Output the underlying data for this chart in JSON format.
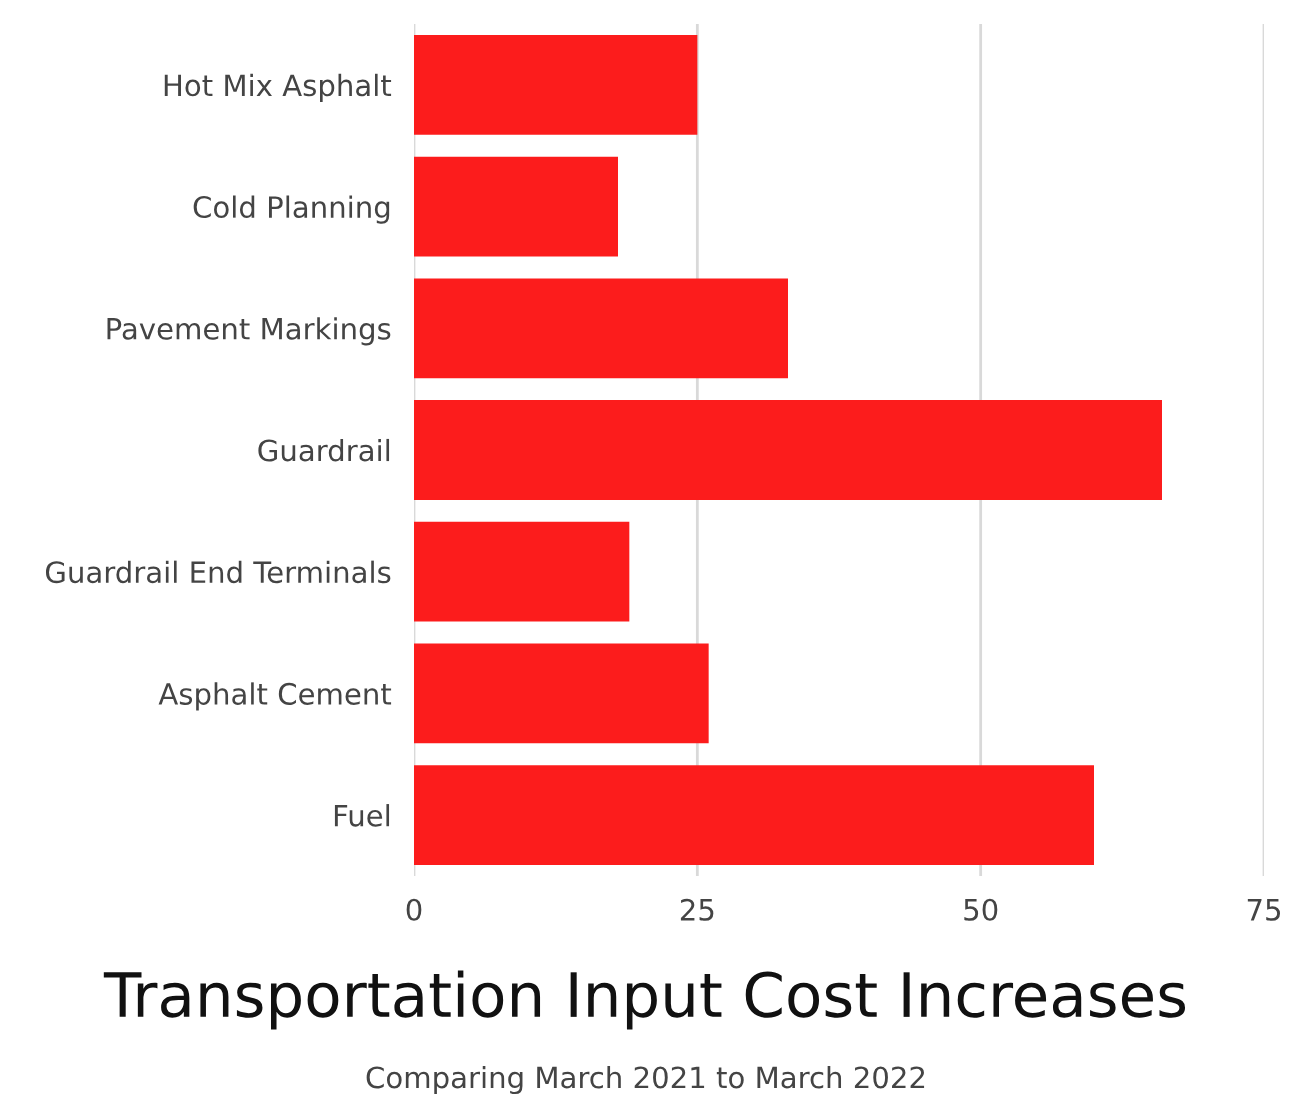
{
  "chart_data": {
    "type": "bar",
    "orientation": "horizontal",
    "title": "Transportation Input Cost Increases",
    "subtitle": "Comparing March 2021 to March 2022",
    "categories": [
      "Hot Mix Asphalt",
      "Cold Planning",
      "Pavement Markings",
      "Guardrail",
      "Guardrail End Terminals",
      "Asphalt Cement",
      "Fuel"
    ],
    "values": [
      25,
      18,
      33,
      66,
      19,
      26,
      60
    ],
    "color": "#fc1c1c",
    "xlim": [
      0,
      75
    ],
    "xticks": [
      0,
      25,
      50,
      75
    ],
    "grid": "x",
    "legend": false
  }
}
